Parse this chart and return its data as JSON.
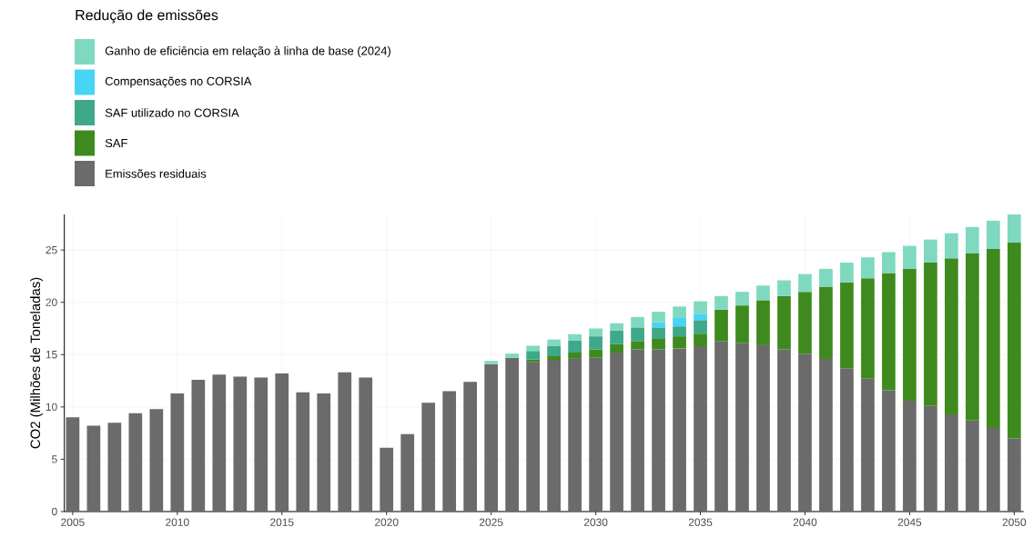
{
  "chart_data": {
    "type": "bar",
    "stacked": true,
    "ylabel": "CO2 (Milhões de Toneladas)",
    "legend_title": "Redução de emissões",
    "x": [
      2005,
      2006,
      2007,
      2008,
      2009,
      2010,
      2011,
      2012,
      2013,
      2014,
      2015,
      2016,
      2017,
      2018,
      2019,
      2020,
      2021,
      2022,
      2023,
      2024,
      2025,
      2026,
      2027,
      2028,
      2029,
      2030,
      2031,
      2032,
      2033,
      2034,
      2035,
      2036,
      2037,
      2038,
      2039,
      2040,
      2041,
      2042,
      2043,
      2044,
      2045,
      2046,
      2047,
      2048,
      2049,
      2050
    ],
    "series": [
      {
        "name": "Emissões residuais",
        "color": "#6b6b6b",
        "values": [
          9.0,
          8.2,
          8.5,
          9.4,
          9.8,
          11.3,
          12.6,
          13.1,
          12.9,
          12.8,
          13.2,
          11.4,
          11.3,
          13.3,
          12.8,
          6.1,
          7.4,
          10.4,
          11.5,
          12.4,
          14.1,
          14.7,
          14.3,
          14.5,
          14.6,
          14.7,
          15.2,
          15.5,
          15.5,
          15.6,
          15.8,
          16.3,
          16.1,
          15.9,
          15.5,
          15.1,
          14.6,
          13.7,
          12.7,
          11.6,
          10.6,
          10.1,
          9.3,
          8.7,
          8.0,
          7.0
        ]
      },
      {
        "name": "SAF",
        "color": "#3f8a1e",
        "values": [
          null,
          null,
          null,
          null,
          null,
          null,
          null,
          null,
          null,
          null,
          null,
          null,
          null,
          null,
          null,
          null,
          null,
          null,
          null,
          null,
          null,
          null,
          0.25,
          0.35,
          0.6,
          0.8,
          0.8,
          0.8,
          1.0,
          1.15,
          1.2,
          3.0,
          3.6,
          4.3,
          5.1,
          5.9,
          6.9,
          8.2,
          9.6,
          11.2,
          12.6,
          13.7,
          14.9,
          16.0,
          17.1,
          18.7
        ]
      },
      {
        "name": "SAF utilizado no CORSIA",
        "color": "#3fa88a",
        "values": [
          null,
          null,
          null,
          null,
          null,
          null,
          null,
          null,
          null,
          null,
          null,
          null,
          null,
          null,
          null,
          null,
          null,
          null,
          null,
          null,
          null,
          null,
          0.8,
          1.0,
          1.15,
          1.25,
          1.3,
          1.3,
          1.1,
          0.95,
          1.3,
          null,
          null,
          null,
          null,
          null,
          null,
          null,
          null,
          null,
          null,
          null,
          null,
          null,
          null,
          null
        ]
      },
      {
        "name": "Compensações no CORSIA",
        "color": "#47d4f5",
        "values": [
          null,
          null,
          null,
          null,
          null,
          null,
          null,
          null,
          null,
          null,
          null,
          null,
          null,
          null,
          null,
          null,
          null,
          null,
          null,
          null,
          null,
          null,
          null,
          null,
          null,
          null,
          null,
          null,
          0.5,
          0.8,
          0.6,
          null,
          null,
          null,
          null,
          null,
          null,
          null,
          null,
          null,
          null,
          null,
          null,
          null,
          null,
          null
        ]
      },
      {
        "name": "Ganho de eficiência em relação à linha de base (2024)",
        "color": "#7fd9c0",
        "values": [
          null,
          null,
          null,
          null,
          null,
          null,
          null,
          null,
          null,
          null,
          null,
          null,
          null,
          null,
          null,
          null,
          null,
          null,
          null,
          null,
          0.3,
          0.4,
          0.5,
          0.6,
          0.6,
          0.75,
          0.7,
          1.0,
          1.0,
          1.1,
          1.2,
          1.3,
          1.3,
          1.4,
          1.5,
          1.7,
          1.7,
          1.9,
          2.0,
          2.0,
          2.2,
          2.2,
          2.4,
          2.5,
          2.7,
          2.7
        ]
      }
    ],
    "xlim": [
      2004.6,
      2050.45
    ],
    "ylim": [
      0,
      28.4
    ],
    "xticks": [
      2005,
      2010,
      2015,
      2020,
      2025,
      2030,
      2035,
      2040,
      2045,
      2050
    ],
    "yticks": [
      0,
      5,
      10,
      15,
      20,
      25
    ],
    "grid": true,
    "legend": "top left"
  }
}
